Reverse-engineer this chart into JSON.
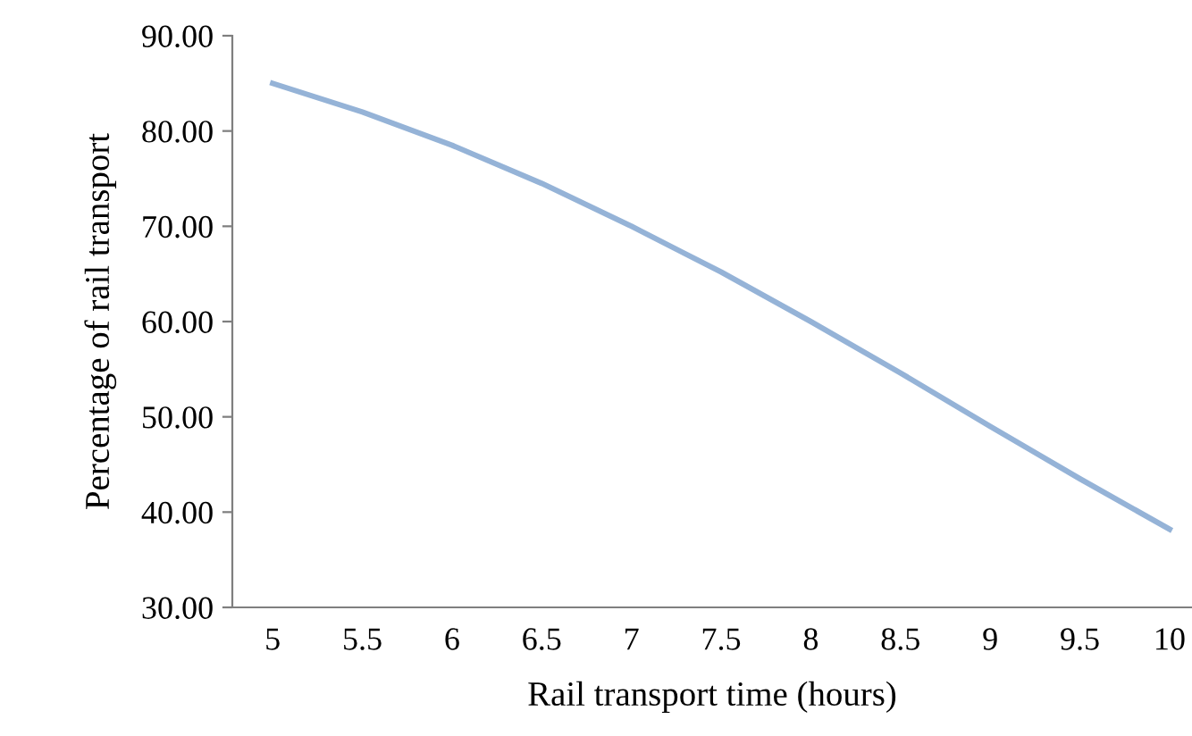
{
  "chart_data": {
    "type": "line",
    "xlabel": "Rail transport time (hours)",
    "ylabel": "Percentage of rail transport",
    "categories": [
      "5",
      "5.5",
      "6",
      "6.5",
      "7",
      "7.5",
      "8",
      "8.5",
      "9",
      "9.5",
      "10"
    ],
    "series": [
      {
        "color": "#95b3d7",
        "values": [
          85,
          82,
          78.5,
          74.5,
          70,
          65.2,
          60,
          54.6,
          49,
          43.5,
          38.2
        ]
      }
    ],
    "ylim": [
      30,
      90
    ],
    "yticks": [
      {
        "value": 30,
        "label": "30.00"
      },
      {
        "value": 40,
        "label": "40.00"
      },
      {
        "value": 50,
        "label": "50.00"
      },
      {
        "value": 60,
        "label": "60.00"
      },
      {
        "value": 70,
        "label": "70.00"
      },
      {
        "value": 80,
        "label": "80.00"
      },
      {
        "value": 90,
        "label": "90.00"
      }
    ],
    "grid": false,
    "marker": "none",
    "line_style": "solid"
  }
}
